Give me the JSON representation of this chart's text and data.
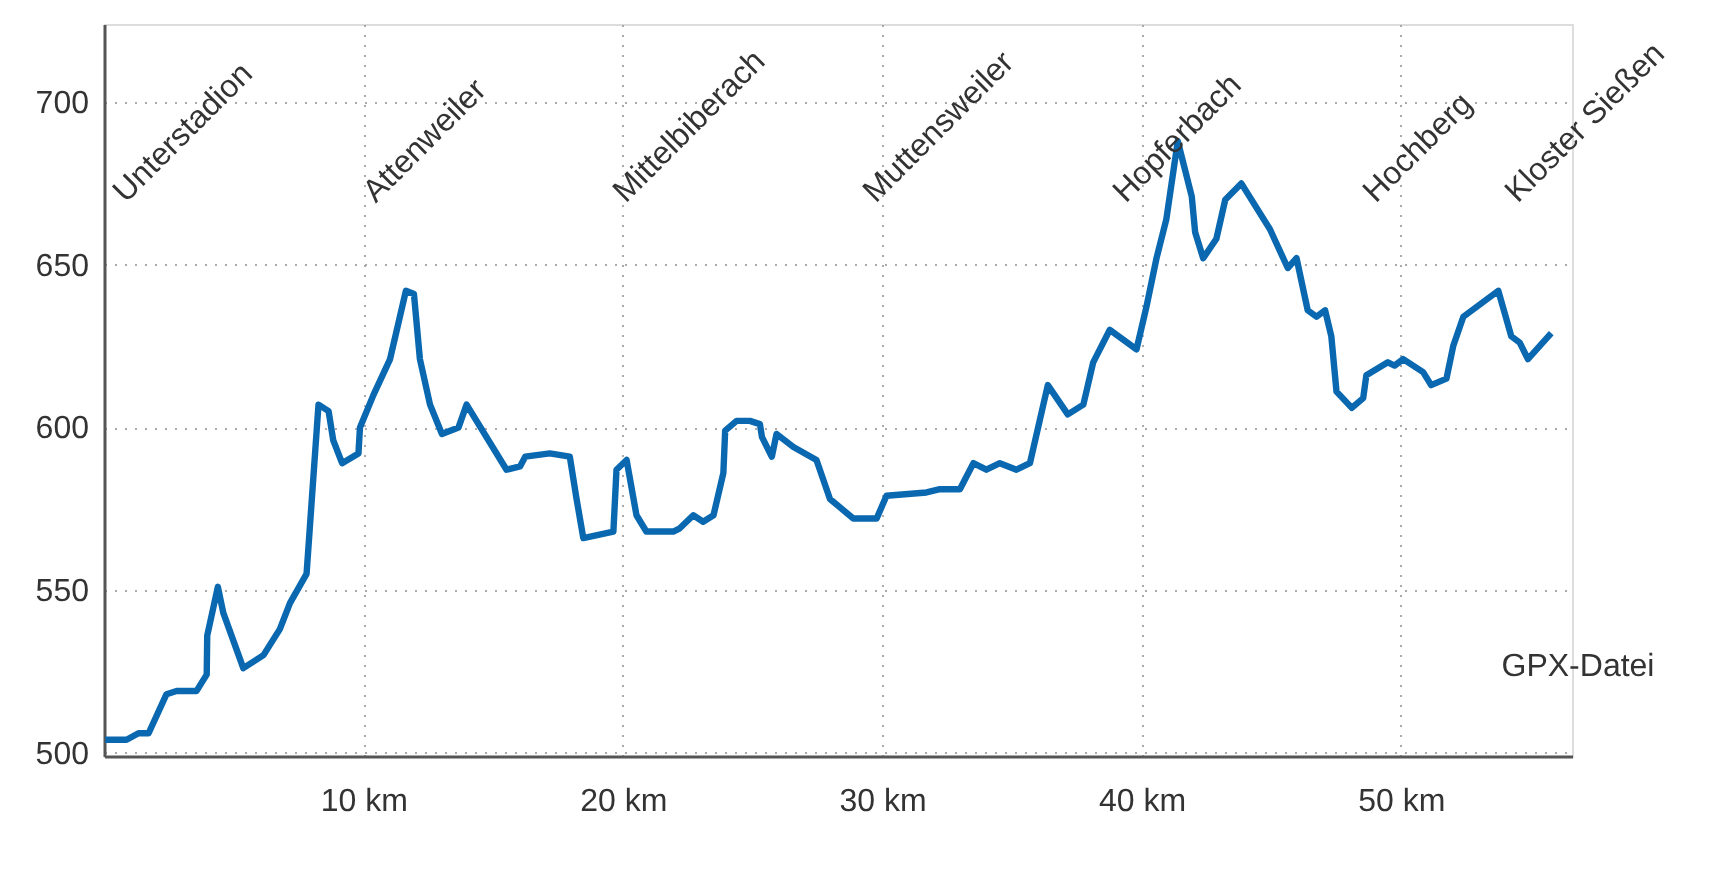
{
  "chart_data": {
    "type": "line",
    "annotations": [
      "Unterstadion",
      "Attenweiler",
      "Mittelbiberach",
      "Muttensweiler",
      "Hopferbach",
      "Hochberg",
      "Kloster Sießen",
      "GPX-Datei"
    ],
    "x": [
      0.05,
      0.87,
      1.33,
      1.72,
      2.41,
      2.8,
      3.57,
      3.96,
      3.98,
      4.39,
      4.6,
      5.37,
      6.15,
      6.78,
      7.17,
      7.81,
      8.27,
      8.66,
      8.84,
      9.18,
      9.81,
      9.87,
      10.39,
      11.03,
      11.64,
      11.95,
      12.18,
      12.57,
      13.03,
      13.67,
      13.98,
      15.52,
      16.04,
      16.24,
      17.19,
      17.96,
      18.22,
      18.48,
      19.64,
      19.76,
      20.15,
      20.53,
      20.91,
      21.95,
      22.2,
      22.72,
      23.1,
      23.5,
      23.88,
      23.95,
      24.39,
      24.9,
      25.29,
      25.37,
      25.75,
      25.93,
      26.58,
      27.47,
      27.99,
      28.89,
      29.79,
      30.17,
      31.71,
      32.23,
      33.0,
      33.52,
      34.02,
      34.54,
      35.18,
      35.7,
      36.39,
      37.16,
      37.76,
      38.14,
      38.78,
      39.81,
      40.19,
      40.58,
      40.96,
      41.4,
      41.94,
      42.07,
      42.38,
      42.89,
      43.23,
      43.85,
      44.95,
      45.64,
      45.98,
      46.41,
      46.75,
      47.08,
      47.32,
      47.52,
      48.11,
      48.55,
      48.67,
      49.5,
      49.76,
      50.09,
      50.86,
      51.17,
      51.76,
      52.02,
      52.41,
      53.76,
      54.26,
      54.59,
      54.9,
      55.8
    ],
    "series": [
      {
        "color": "#0a68b0",
        "values": [
          504,
          504,
          506,
          506,
          518,
          519,
          519,
          524,
          536,
          551,
          543,
          526,
          530,
          538,
          546,
          555,
          607,
          605,
          596,
          589,
          592,
          600,
          610,
          621,
          642,
          641,
          621,
          607,
          598,
          600,
          607,
          587,
          588,
          591,
          592,
          591,
          578,
          566,
          568,
          587,
          590,
          573,
          568,
          568,
          569,
          573,
          571,
          573,
          586,
          599,
          602,
          602,
          601,
          597,
          591,
          598,
          594,
          590,
          578,
          572,
          572,
          579,
          580,
          581,
          581,
          589,
          587,
          589,
          587,
          589,
          613,
          604,
          607,
          620,
          630,
          624,
          637,
          652,
          664,
          688,
          671,
          660,
          652,
          658,
          670,
          675,
          661,
          649,
          652,
          636,
          634,
          636,
          628,
          611,
          606,
          609,
          616,
          620,
          619,
          621,
          617,
          613,
          615,
          625,
          634,
          642,
          628,
          626,
          621,
          629
        ]
      }
    ],
    "xlim": [
      0,
      56.6
    ],
    "ylim": [
      499,
      724
    ],
    "xticks": [
      {
        "value": 10,
        "label": "10 km"
      },
      {
        "value": 20,
        "label": "20 km"
      },
      {
        "value": 30,
        "label": "30 km"
      },
      {
        "value": 40,
        "label": "40 km"
      },
      {
        "value": 50,
        "label": "50 km"
      }
    ],
    "yticks": [
      500,
      550,
      600,
      650,
      700
    ],
    "grid": true,
    "line_style": "solid",
    "marker": "none"
  }
}
